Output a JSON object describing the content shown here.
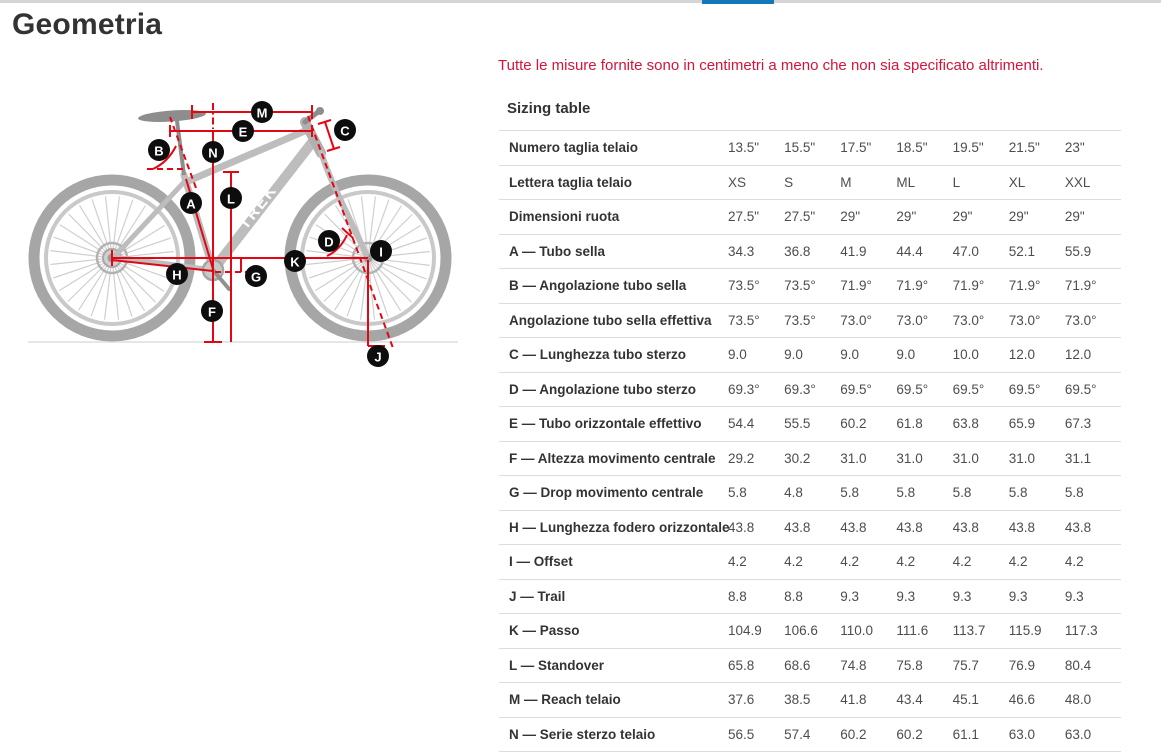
{
  "header": {
    "title": "Geometria"
  },
  "measurements_note": "Tutte le misure fornite sono in centimetri a meno che non sia specificato altrimenti.",
  "sizing_table": {
    "heading": "Sizing table",
    "rows": [
      {
        "label": "Numero taglia telaio",
        "values": [
          "13.5\"",
          "15.5\"",
          "17.5\"",
          "18.5\"",
          "19.5\"",
          "21.5\"",
          "23\""
        ]
      },
      {
        "label": "Lettera taglia telaio",
        "values": [
          "XS",
          "S",
          "M",
          "ML",
          "L",
          "XL",
          "XXL"
        ]
      },
      {
        "label": "Dimensioni ruota",
        "values": [
          "27.5\"",
          "27.5\"",
          "29\"",
          "29\"",
          "29\"",
          "29\"",
          "29\""
        ]
      },
      {
        "label": "A — Tubo sella",
        "values": [
          "34.3",
          "36.8",
          "41.9",
          "44.4",
          "47.0",
          "52.1",
          "55.9"
        ]
      },
      {
        "label": "B — Angolazione tubo sella",
        "values": [
          "73.5°",
          "73.5°",
          "71.9°",
          "71.9°",
          "71.9°",
          "71.9°",
          "71.9°"
        ]
      },
      {
        "label": "Angolazione tubo sella effettiva",
        "values": [
          "73.5°",
          "73.5°",
          "73.0°",
          "73.0°",
          "73.0°",
          "73.0°",
          "73.0°"
        ]
      },
      {
        "label": "C — Lunghezza tubo sterzo",
        "values": [
          "9.0",
          "9.0",
          "9.0",
          "9.0",
          "10.0",
          "12.0",
          "12.0"
        ]
      },
      {
        "label": "D — Angolazione tubo sterzo",
        "values": [
          "69.3°",
          "69.3°",
          "69.5°",
          "69.5°",
          "69.5°",
          "69.5°",
          "69.5°"
        ]
      },
      {
        "label": "E — Tubo orizzontale effettivo",
        "values": [
          "54.4",
          "55.5",
          "60.2",
          "61.8",
          "63.8",
          "65.9",
          "67.3"
        ]
      },
      {
        "label": "F — Altezza movimento centrale",
        "values": [
          "29.2",
          "30.2",
          "31.0",
          "31.0",
          "31.0",
          "31.0",
          "31.1"
        ]
      },
      {
        "label": "G — Drop movimento centrale",
        "values": [
          "5.8",
          "4.8",
          "5.8",
          "5.8",
          "5.8",
          "5.8",
          "5.8"
        ]
      },
      {
        "label": "H — Lunghezza fodero orizzontale",
        "values": [
          "43.8",
          "43.8",
          "43.8",
          "43.8",
          "43.8",
          "43.8",
          "43.8"
        ]
      },
      {
        "label": "I — Offset",
        "values": [
          "4.2",
          "4.2",
          "4.2",
          "4.2",
          "4.2",
          "4.2",
          "4.2"
        ]
      },
      {
        "label": "J — Trail",
        "values": [
          "8.8",
          "8.8",
          "9.3",
          "9.3",
          "9.3",
          "9.3",
          "9.3"
        ]
      },
      {
        "label": "K — Passo",
        "values": [
          "104.9",
          "106.6",
          "110.0",
          "111.6",
          "113.7",
          "115.9",
          "117.3"
        ]
      },
      {
        "label": "L — Standover",
        "values": [
          "65.8",
          "68.6",
          "74.8",
          "75.8",
          "75.7",
          "76.9",
          "80.4"
        ]
      },
      {
        "label": "M — Reach telaio",
        "values": [
          "37.6",
          "38.5",
          "41.8",
          "43.4",
          "45.1",
          "46.6",
          "48.0"
        ]
      },
      {
        "label": "N — Serie sterzo telaio",
        "values": [
          "56.5",
          "57.4",
          "60.2",
          "60.2",
          "61.1",
          "63.0",
          "63.0"
        ]
      }
    ]
  },
  "diagram": {
    "brand": "TREK",
    "markers": {
      "m": "M",
      "e": "E",
      "c": "C",
      "b": "B",
      "n": "N",
      "a": "A",
      "l": "L",
      "d": "D",
      "i": "I",
      "k": "K",
      "h": "H",
      "g": "G",
      "f": "F",
      "j": "J"
    }
  },
  "colors": {
    "accent_red": "#e30613",
    "note_red": "#d4143c",
    "tab_blue": "#1377b8"
  }
}
